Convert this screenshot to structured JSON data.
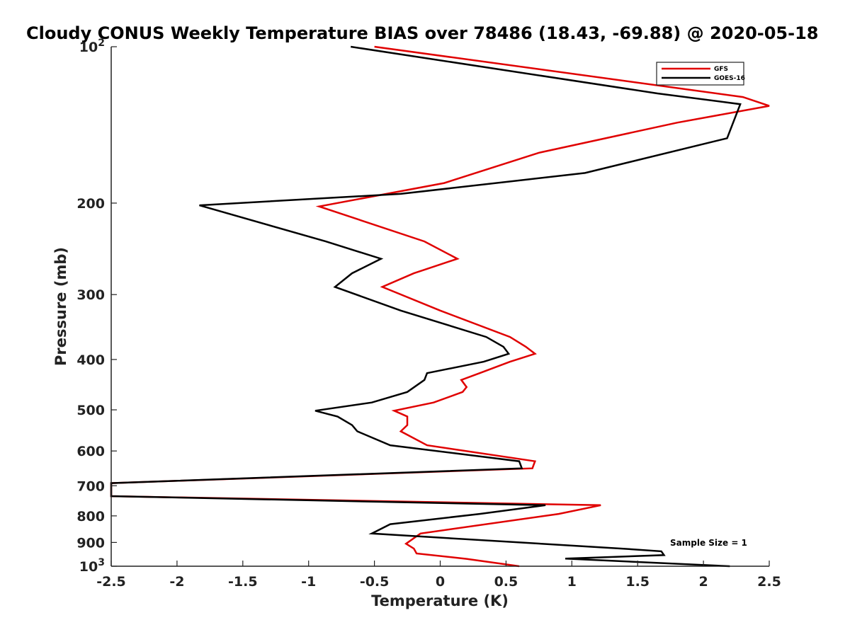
{
  "chart_data": {
    "type": "line",
    "title": "Cloudy CONUS Weekly Temperature BIAS over 78486 (18.43, -69.88) @ 2020-05-18",
    "xlabel": "Temperature (K)",
    "ylabel": "Pressure (mb)",
    "xlim": [
      -2.5,
      2.5
    ],
    "ylim": [
      100,
      1000
    ],
    "y_scale": "log",
    "y_reversed": true,
    "x_ticks": [
      -2.5,
      -2,
      -1.5,
      -1,
      -0.5,
      0,
      0.5,
      1,
      1.5,
      2,
      2.5
    ],
    "x_tick_labels": [
      "-2.5",
      "-2",
      "-1.5",
      "-1",
      "-0.5",
      "0",
      "0.5",
      "1",
      "1.5",
      "2",
      "2.5"
    ],
    "y_ticks": [
      200,
      300,
      400,
      500,
      600,
      700,
      800,
      900
    ],
    "y_tick_labels": [
      "200",
      "300",
      "400",
      "500",
      "600",
      "700",
      "800",
      "900"
    ],
    "y_decade_ticks": [
      {
        "value": 100,
        "base": "10",
        "exp": "2"
      },
      {
        "value": 1000,
        "base": "10",
        "exp": "3"
      }
    ],
    "grid": false,
    "legend_position": "top-right",
    "annotation": "Sample Size = 1",
    "series": [
      {
        "name": "GFS",
        "color": "#e00000",
        "points": [
          {
            "x": -0.5,
            "p": 100
          },
          {
            "x": 2.3,
            "p": 125
          },
          {
            "x": 2.5,
            "p": 130
          },
          {
            "x": 1.8,
            "p": 140
          },
          {
            "x": 0.75,
            "p": 160
          },
          {
            "x": 0.03,
            "p": 183
          },
          {
            "x": -0.92,
            "p": 203
          },
          {
            "x": -0.12,
            "p": 237
          },
          {
            "x": 0.13,
            "p": 256
          },
          {
            "x": -0.2,
            "p": 273
          },
          {
            "x": -0.44,
            "p": 290
          },
          {
            "x": 0.0,
            "p": 322
          },
          {
            "x": 0.53,
            "p": 362
          },
          {
            "x": 0.65,
            "p": 378
          },
          {
            "x": 0.72,
            "p": 390
          },
          {
            "x": 0.53,
            "p": 404
          },
          {
            "x": 0.3,
            "p": 425
          },
          {
            "x": 0.16,
            "p": 438
          },
          {
            "x": 0.2,
            "p": 452
          },
          {
            "x": 0.17,
            "p": 462
          },
          {
            "x": -0.05,
            "p": 484
          },
          {
            "x": -0.35,
            "p": 502
          },
          {
            "x": -0.25,
            "p": 515
          },
          {
            "x": -0.25,
            "p": 535
          },
          {
            "x": -0.3,
            "p": 550
          },
          {
            "x": -0.1,
            "p": 585
          },
          {
            "x": 0.72,
            "p": 628
          },
          {
            "x": 0.7,
            "p": 648
          },
          {
            "x": -2.5,
            "p": 692
          },
          {
            "x": -2.5,
            "p": 733
          },
          {
            "x": 1.22,
            "p": 763
          },
          {
            "x": 0.9,
            "p": 793
          },
          {
            "x": -0.15,
            "p": 865
          },
          {
            "x": -0.26,
            "p": 905
          },
          {
            "x": -0.2,
            "p": 925
          },
          {
            "x": -0.18,
            "p": 945
          },
          {
            "x": 0.2,
            "p": 968
          },
          {
            "x": 0.6,
            "p": 1000
          }
        ]
      },
      {
        "name": "GOES-16",
        "color": "#000000",
        "points": [
          {
            "x": -0.68,
            "p": 100
          },
          {
            "x": 1.65,
            "p": 123
          },
          {
            "x": 2.28,
            "p": 129
          },
          {
            "x": 2.18,
            "p": 150
          },
          {
            "x": 1.1,
            "p": 175
          },
          {
            "x": -0.3,
            "p": 192
          },
          {
            "x": -1.83,
            "p": 202
          },
          {
            "x": -0.87,
            "p": 237
          },
          {
            "x": -0.45,
            "p": 256
          },
          {
            "x": -0.67,
            "p": 273
          },
          {
            "x": -0.8,
            "p": 290
          },
          {
            "x": -0.3,
            "p": 322
          },
          {
            "x": 0.35,
            "p": 362
          },
          {
            "x": 0.48,
            "p": 378
          },
          {
            "x": 0.52,
            "p": 390
          },
          {
            "x": 0.33,
            "p": 404
          },
          {
            "x": -0.1,
            "p": 425
          },
          {
            "x": -0.12,
            "p": 438
          },
          {
            "x": -0.25,
            "p": 462
          },
          {
            "x": -0.52,
            "p": 484
          },
          {
            "x": -0.95,
            "p": 502
          },
          {
            "x": -0.78,
            "p": 515
          },
          {
            "x": -0.67,
            "p": 535
          },
          {
            "x": -0.63,
            "p": 550
          },
          {
            "x": -0.38,
            "p": 585
          },
          {
            "x": 0.6,
            "p": 628
          },
          {
            "x": 0.62,
            "p": 648
          },
          {
            "x": -2.5,
            "p": 692
          },
          {
            "x": -2.5,
            "p": 733
          },
          {
            "x": 0.8,
            "p": 763
          },
          {
            "x": 0.3,
            "p": 793
          },
          {
            "x": -0.38,
            "p": 830
          },
          {
            "x": -0.52,
            "p": 865
          },
          {
            "x": 1.38,
            "p": 925
          },
          {
            "x": 1.68,
            "p": 936
          },
          {
            "x": 1.7,
            "p": 952
          },
          {
            "x": 0.95,
            "p": 967
          },
          {
            "x": 2.2,
            "p": 1000
          }
        ]
      }
    ]
  }
}
